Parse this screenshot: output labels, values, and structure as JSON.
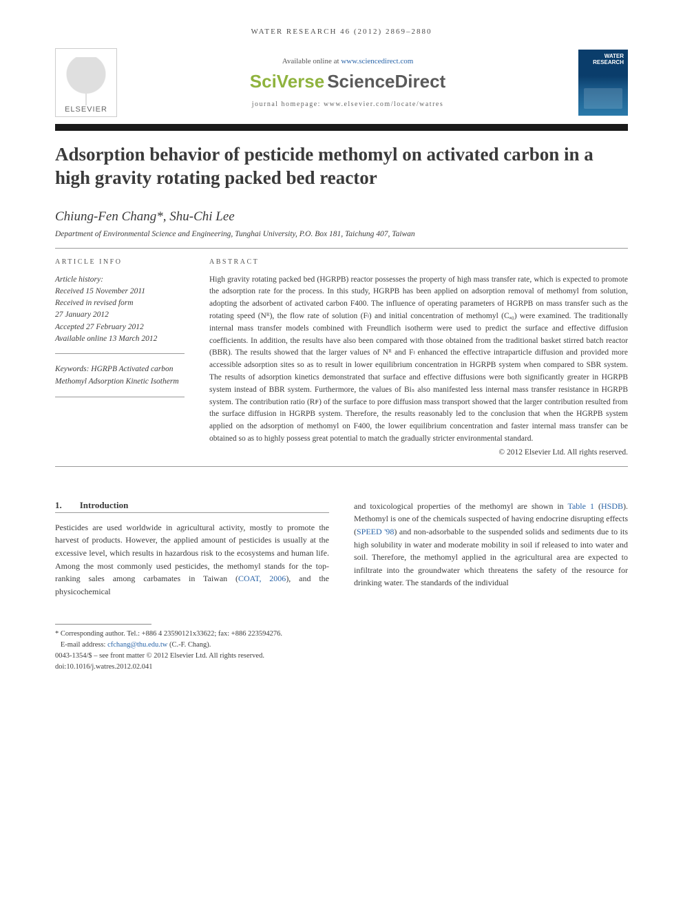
{
  "running_header": "WATER RESEARCH 46 (2012) 2869–2880",
  "top": {
    "elsevier_label": "ELSEVIER",
    "available_prefix": "Available online at ",
    "available_link": "www.sciencedirect.com",
    "sciverse_sv": "SciVerse",
    "sciverse_sd": "ScienceDirect",
    "homepage_prefix": "journal homepage: ",
    "homepage_link": "www.elsevier.com/locate/watres",
    "cover_title_line1": "WATER",
    "cover_title_line2": "RESEARCH"
  },
  "title": "Adsorption behavior of pesticide methomyl on activated carbon in a high gravity rotating packed bed reactor",
  "authors": "Chiung-Fen Chang*, Shu-Chi Lee",
  "affiliation": "Department of Environmental Science and Engineering, Tunghai University, P.O. Box 181, Taichung 407, Taiwan",
  "article_info": {
    "label": "ARTICLE INFO",
    "history_label": "Article history:",
    "received": "Received 15 November 2011",
    "revised1": "Received in revised form",
    "revised2": "27 January 2012",
    "accepted": "Accepted 27 February 2012",
    "online": "Available online 13 March 2012",
    "keywords_label": "Keywords:",
    "keywords": [
      "HGRPB",
      "Activated carbon",
      "Methomyl",
      "Adsorption",
      "Kinetic",
      "Isotherm"
    ]
  },
  "abstract": {
    "label": "ABSTRACT",
    "text": "High gravity rotating packed bed (HGRPB) reactor possesses the property of high mass transfer rate, which is expected to promote the adsorption rate for the process. In this study, HGRPB has been applied on adsorption removal of methomyl from solution, adopting the adsorbent of activated carbon F400. The influence of operating parameters of HGRPB on mass transfer such as the rotating speed (Nᴿ), the flow rate of solution (Fₗ) and initial concentration of methomyl (Cₐ₀) were examined. The traditionally internal mass transfer models combined with Freundlich isotherm were used to predict the surface and effective diffusion coefficients. In addition, the results have also been compared with those obtained from the traditional basket stirred batch reactor (BBR). The results showed that the larger values of Nᴿ and Fₗ enhanced the effective intraparticle diffusion and provided more accessible adsorption sites so as to result in lower equilibrium concentration in HGRPB system when compared to SBR system. The results of adsorption kinetics demonstrated that surface and effective diffusions were both significantly greater in HGRPB system instead of BBR system. Furthermore, the values of Biₛ also manifested less internal mass transfer resistance in HGRPB system. The contribution ratio (Rꜰ) of the surface to pore diffusion mass transport showed that the larger contribution resulted from the surface diffusion in HGRPB system. Therefore, the results reasonably led to the conclusion that when the HGRPB system applied on the adsorption of methomyl on F400, the lower equilibrium concentration and faster internal mass transfer can be obtained so as to highly possess great potential to match the gradually stricter environmental standard.",
    "copyright": "© 2012 Elsevier Ltd. All rights reserved."
  },
  "section1": {
    "num": "1.",
    "heading": "Introduction",
    "col1_pre": "Pesticides are used worldwide in agricultural activity, mostly to promote the harvest of products. However, the applied amount of pesticides is usually at the excessive level, which results in hazardous risk to the ecosystems and human life. Among the most commonly used pesticides, the methomyl stands for the top-ranking sales among carbamates in Taiwan (",
    "col1_link1": "COAT, 2006",
    "col1_post": "), and the physicochemical",
    "col2_pre": "and toxicological properties of the methomyl are shown in ",
    "col2_link1": "Table 1",
    "col2_mid1": " (",
    "col2_link2": "HSDB",
    "col2_mid2": "). Methomyl is one of the chemicals suspected of having endocrine disrupting effects (",
    "col2_link3": "SPEED '98",
    "col2_post": ") and non-adsorbable to the suspended solids and sediments due to its high solubility in water and moderate mobility in soil if released to into water and soil. Therefore, the methomyl applied in the agricultural area are expected to infiltrate into the groundwater which threatens the safety of the resource for drinking water. The standards of the individual"
  },
  "footnotes": {
    "corr": "* Corresponding author. Tel.: +886 4 23590121x33622; fax: +886 223594276.",
    "email_label": "E-mail address: ",
    "email": "cfchang@thu.edu.tw",
    "email_suffix": " (C.-F. Chang).",
    "front_matter": "0043-1354/$ – see front matter © 2012 Elsevier Ltd. All rights reserved.",
    "doi": "doi:10.1016/j.watres.2012.02.041"
  },
  "colors": {
    "link": "#2964a8",
    "sciverse_green": "#8fb33e",
    "sciverse_gray": "#5a5a5a",
    "cover_bg": "#0a3d6b",
    "text": "#3a3a3a",
    "rule_dark": "#1a1a1a"
  }
}
